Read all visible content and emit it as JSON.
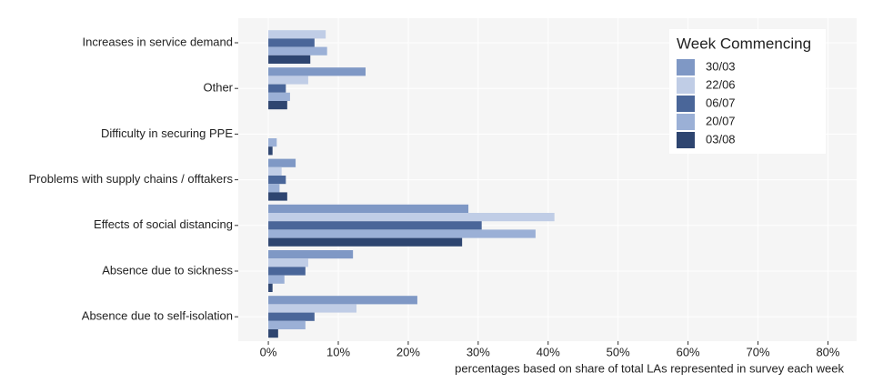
{
  "chart_data": {
    "type": "bar",
    "orientation": "horizontal",
    "x_label": "percentages based on share of total LAs represented in survey each week",
    "legend_title": "Week Commencing",
    "legend_position": "top-right",
    "categories": [
      "Increases in service demand",
      "Other",
      "Difficulty in securing PPE",
      "Problems with supply chains / offtakers",
      "Effects of social distancing",
      "Absence due to sickness",
      "Absence due to self-isolation"
    ],
    "series": [
      {
        "name": "30/03",
        "color": "#7f98c5",
        "values": [
          0,
          13.9,
          0,
          3.9,
          28.6,
          12.1,
          21.3
        ]
      },
      {
        "name": "22/06",
        "color": "#c0cde6",
        "values": [
          8.2,
          5.7,
          0,
          1.9,
          40.9,
          5.7,
          12.6
        ]
      },
      {
        "name": "06/07",
        "color": "#4a6699",
        "values": [
          6.6,
          2.5,
          0,
          2.5,
          30.5,
          5.3,
          6.6
        ]
      },
      {
        "name": "20/07",
        "color": "#9bb0d6",
        "values": [
          8.4,
          3.1,
          1.2,
          1.6,
          38.2,
          2.3,
          5.3
        ]
      },
      {
        "name": "03/08",
        "color": "#2e4570",
        "values": [
          6,
          2.7,
          0.6,
          2.7,
          27.7,
          0.6,
          1.4
        ]
      }
    ],
    "xlim": [
      -4.3,
      84.1
    ],
    "xticks": [
      {
        "value": 0,
        "label": "0%"
      },
      {
        "value": 10,
        "label": "10%"
      },
      {
        "value": 20,
        "label": "20%"
      },
      {
        "value": 30,
        "label": "30%"
      },
      {
        "value": 40,
        "label": "40%"
      },
      {
        "value": 50,
        "label": "50%"
      },
      {
        "value": 60,
        "label": "60%"
      },
      {
        "value": 70,
        "label": "70%"
      },
      {
        "value": 80,
        "label": "80%"
      }
    ],
    "grid": true
  }
}
